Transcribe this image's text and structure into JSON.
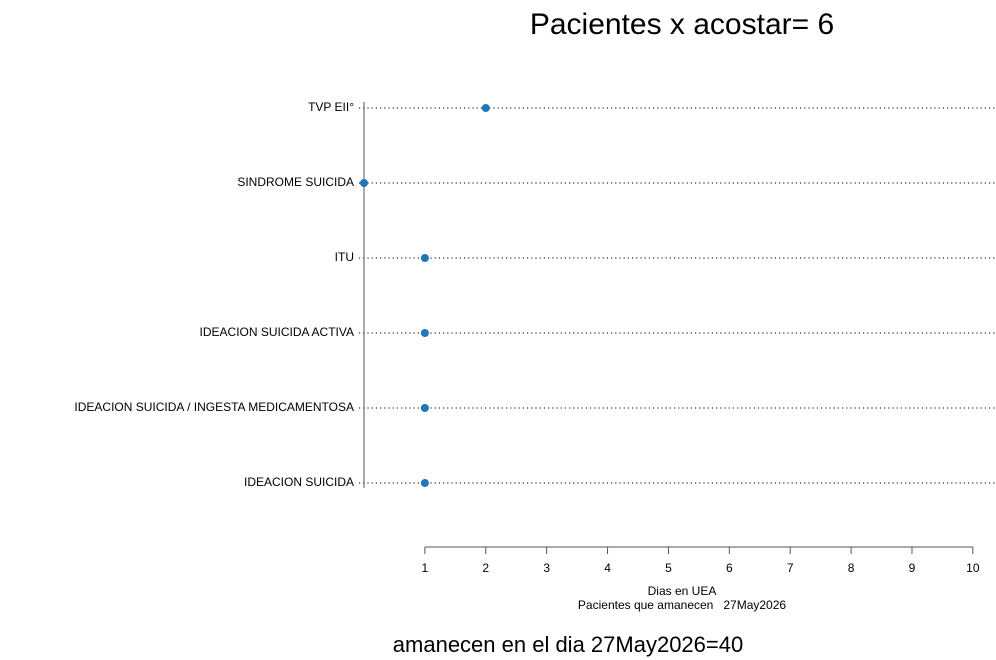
{
  "chart_data": {
    "type": "dotchart",
    "title": "Pacientes x acostar= 6",
    "categories": [
      "TVP EII°",
      "SINDROME SUICIDA",
      "ITU",
      "IDEACION SUICIDA ACTIVA",
      "IDEACION SUICIDA / INGESTA MEDICAMENTOSA",
      "IDEACION SUICIDA"
    ],
    "values": [
      2,
      0,
      1,
      1,
      1,
      1
    ],
    "color": "#1f77b4",
    "x_label": "Dias en UEA",
    "subtitle": "Pacientes que amanecen   27May2026",
    "footer": "amanecen en el dia 27May2026=40",
    "xlim": [
      0,
      10.38
    ],
    "xticks": [
      1,
      2,
      3,
      4,
      5,
      6,
      7,
      8,
      9,
      10
    ]
  }
}
